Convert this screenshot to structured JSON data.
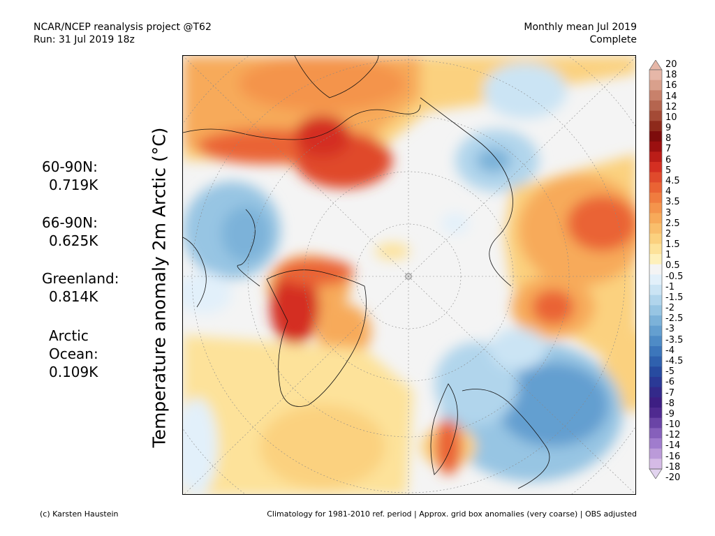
{
  "header": {
    "line1_left": "NCAR/NCEP reanalysis project @T62",
    "line2_left": "Run: 31 Jul 2019 18z",
    "line1_right": "Monthly mean Jul 2019",
    "line2_right": "Complete"
  },
  "ylabel": "Temperature anomaly 2m Arctic (°C)",
  "stats": [
    {
      "label": "60-90N:",
      "value": "0.719K"
    },
    {
      "label": "66-90N:",
      "value": "0.625K"
    },
    {
      "label": "Greenland:",
      "value": "0.814K"
    },
    {
      "label_line1": "Arctic",
      "label_line2": "Ocean:",
      "value": "0.109K"
    }
  ],
  "colorbar": {
    "labels": [
      "20",
      "18",
      "16",
      "14",
      "12",
      "10",
      "9",
      "8",
      "7",
      "6",
      "5",
      "4.5",
      "4",
      "3.5",
      "3",
      "2.5",
      "2",
      "1.5",
      "1",
      "0.5",
      "-0.5",
      "-1",
      "-1.5",
      "-2",
      "-2.5",
      "-3",
      "-3.5",
      "-4",
      "-4.5",
      "-5",
      "-6",
      "-7",
      "-8",
      "-9",
      "-10",
      "-12",
      "-14",
      "-16",
      "-18",
      "-20"
    ],
    "colors": [
      "#e6b7a8",
      "#d9a08c",
      "#c8816b",
      "#b5654f",
      "#a44a36",
      "#8e2a1b",
      "#7d0c0c",
      "#9b1010",
      "#bb1d18",
      "#d42f22",
      "#e04a2c",
      "#ea6334",
      "#f07c3f",
      "#f4944c",
      "#f7aa5a",
      "#f9be6c",
      "#fbd17f",
      "#fde29a",
      "#fef0bb",
      "#f4f4f4",
      "#e2f0fa",
      "#cbe4f4",
      "#b1d5ec",
      "#97c5e3",
      "#7cb2d9",
      "#649fd0",
      "#4e8bc6",
      "#3c76bb",
      "#2f61ae",
      "#274ba0",
      "#2a3996",
      "#33298a",
      "#3d1e83",
      "#4f2a90",
      "#6a44a6",
      "#8660bb",
      "#a07ccd",
      "#bb9ad9",
      "#d5bbe6"
    ]
  },
  "footer": {
    "left": "(c) Karsten Haustein",
    "right": "Climatology for 1981-2010 ref. period | Approx. grid box anomalies (very coarse) | OBS adjusted"
  }
}
